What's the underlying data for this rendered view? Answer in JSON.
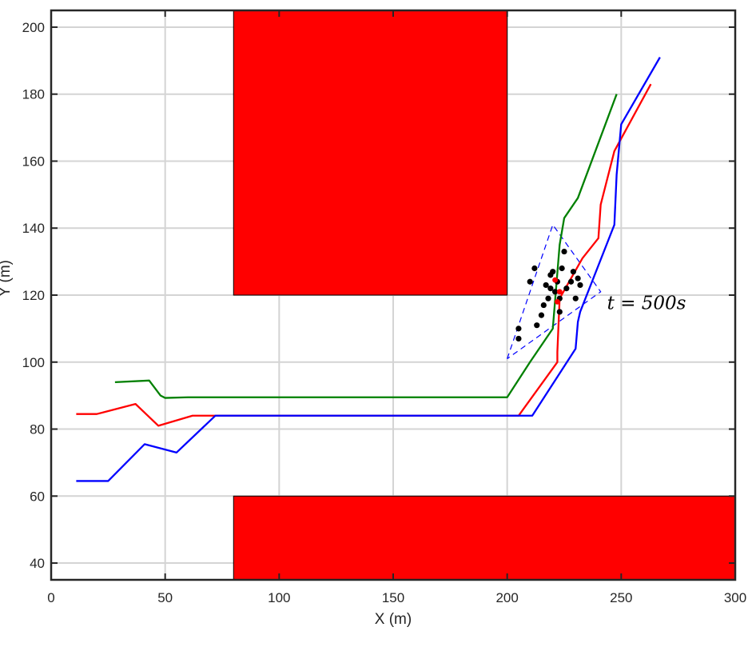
{
  "chart_data": {
    "type": "line",
    "xlabel": "X (m)",
    "ylabel": "Y (m)",
    "xlim": [
      0,
      300
    ],
    "ylim": [
      35,
      205
    ],
    "xticks": [
      0,
      50,
      100,
      150,
      200,
      250,
      300
    ],
    "yticks": [
      40,
      60,
      80,
      100,
      120,
      140,
      160,
      180,
      200
    ],
    "grid": true,
    "annotation": {
      "text": "t = 500s",
      "x": 241,
      "y": 117
    },
    "obstacles": [
      {
        "x": [
          80,
          200
        ],
        "y": [
          120,
          205
        ],
        "color": "#ff0000"
      },
      {
        "x": [
          80,
          300
        ],
        "y": [
          35,
          60
        ],
        "color": "#ff0000"
      }
    ],
    "series": [
      {
        "color": "#008000",
        "x": [
          28,
          43,
          48,
          50,
          60,
          200,
          210,
          220,
          223,
          225,
          231,
          248
        ],
        "y": [
          94,
          94.5,
          90,
          89.3,
          89.5,
          89.5,
          100,
          110,
          135,
          143,
          149,
          180
        ]
      },
      {
        "color": "#ff0000",
        "x": [
          11,
          20,
          37,
          47,
          62,
          205,
          222,
          222,
          223,
          233,
          240,
          241,
          247,
          263
        ],
        "y": [
          84.5,
          84.5,
          87.5,
          81,
          84,
          84,
          100,
          103,
          119,
          131,
          137,
          147,
          163,
          183
        ]
      },
      {
        "color": "#0000ff",
        "x": [
          11,
          25,
          41,
          55,
          72,
          200,
          211,
          230,
          231,
          232,
          247,
          248,
          250,
          267
        ],
        "y": [
          64.5,
          64.5,
          75.5,
          73,
          84,
          84,
          84,
          104,
          112,
          115,
          141,
          156,
          171,
          191
        ]
      }
    ],
    "sensing_region": {
      "style": "dashed",
      "color": "#0000ff",
      "x": [
        200,
        220,
        241,
        200
      ],
      "y": [
        101,
        141,
        121,
        101
      ]
    },
    "agents": {
      "color": "#000000",
      "x": [
        205,
        205,
        210,
        212,
        213,
        215,
        216,
        217,
        218,
        219,
        219,
        220,
        221,
        222,
        223,
        223,
        224,
        225,
        226,
        228,
        229,
        230,
        231,
        232
      ],
      "y": [
        107,
        110,
        124,
        128,
        111,
        114,
        117,
        123,
        119,
        122,
        126,
        127,
        121,
        124,
        119,
        115,
        128,
        133,
        122,
        124,
        127,
        119,
        125,
        123
      ]
    },
    "highlighted_points": {
      "color": "#ff0000",
      "x": [
        221,
        222,
        223
      ],
      "y": [
        124.5,
        118,
        121
      ]
    }
  }
}
